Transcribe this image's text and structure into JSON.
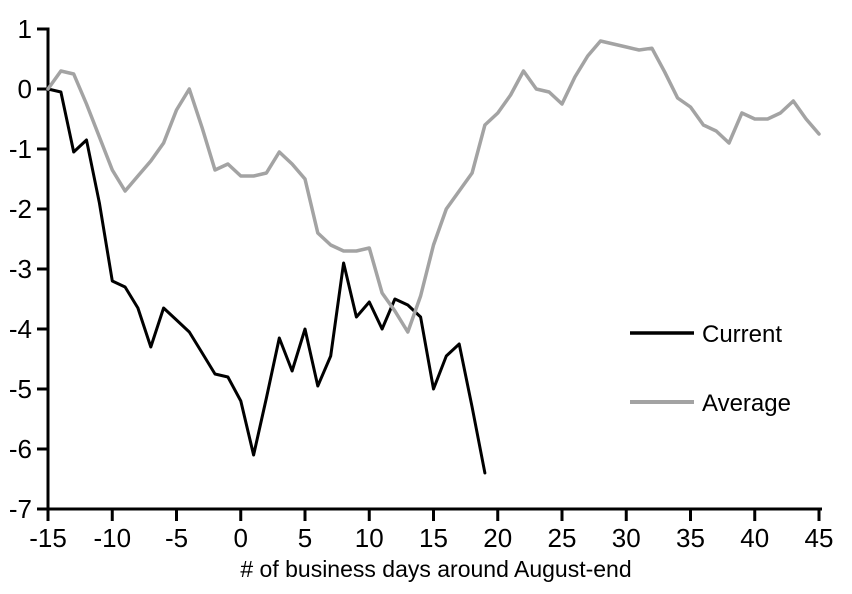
{
  "chart_data": {
    "type": "line",
    "title": "",
    "xlabel": "# of business days around August-end",
    "ylabel": "",
    "xlim": [
      -15,
      45
    ],
    "ylim": [
      -7,
      1
    ],
    "grid": false,
    "background_color": "#ffffff",
    "axis_color": "#000000",
    "legend_position": "middle-right",
    "x_ticks": [
      -15,
      -10,
      -5,
      0,
      5,
      10,
      15,
      20,
      25,
      30,
      35,
      40,
      45
    ],
    "y_ticks": [
      1,
      0,
      -1,
      -2,
      -3,
      -4,
      -5,
      -6,
      -7
    ],
    "series": [
      {
        "name": "Current",
        "color": "#000000",
        "x": [
          -15,
          -14,
          -13,
          -12,
          -11,
          -10,
          -9,
          -8,
          -7,
          -6,
          -5,
          -4,
          -3,
          -2,
          -1,
          0,
          1,
          2,
          3,
          4,
          5,
          6,
          7,
          8,
          9,
          10,
          11,
          12,
          13,
          14,
          15,
          16,
          17,
          18,
          19
        ],
        "values": [
          0,
          -0.05,
          -1.05,
          -0.85,
          -1.9,
          -3.2,
          -3.3,
          -3.65,
          -4.3,
          -3.65,
          -3.85,
          -4.05,
          -4.4,
          -4.75,
          -4.8,
          -5.2,
          -6.1,
          -5.15,
          -4.15,
          -4.7,
          -4.0,
          -4.95,
          -4.45,
          -2.9,
          -3.8,
          -3.55,
          -4.0,
          -3.5,
          -3.6,
          -3.8,
          -5.0,
          -4.45,
          -4.25,
          -5.3,
          -6.4
        ]
      },
      {
        "name": "Average",
        "color": "#a3a3a3",
        "x": [
          -15,
          -14,
          -13,
          -12,
          -11,
          -10,
          -9,
          -8,
          -7,
          -6,
          -5,
          -4,
          -3,
          -2,
          -1,
          0,
          1,
          2,
          3,
          4,
          5,
          6,
          7,
          8,
          9,
          10,
          11,
          12,
          13,
          14,
          15,
          16,
          17,
          18,
          19,
          20,
          21,
          22,
          23,
          24,
          25,
          26,
          27,
          28,
          29,
          30,
          31,
          32,
          33,
          34,
          35,
          36,
          37,
          38,
          39,
          40,
          41,
          42,
          43,
          44,
          45
        ],
        "values": [
          0,
          0.3,
          0.25,
          -0.25,
          -0.8,
          -1.35,
          -1.7,
          -1.45,
          -1.2,
          -0.9,
          -0.35,
          0.0,
          -0.65,
          -1.35,
          -1.25,
          -1.45,
          -1.45,
          -1.4,
          -1.05,
          -1.25,
          -1.5,
          -2.4,
          -2.6,
          -2.7,
          -2.7,
          -2.65,
          -3.4,
          -3.7,
          -4.05,
          -3.45,
          -2.6,
          -2.0,
          -1.7,
          -1.4,
          -0.6,
          -0.4,
          -0.1,
          0.3,
          0.0,
          -0.05,
          -0.25,
          0.2,
          0.55,
          0.8,
          0.75,
          0.7,
          0.65,
          0.68,
          0.28,
          -0.15,
          -0.3,
          -0.6,
          -0.7,
          -0.9,
          -0.4,
          -0.5,
          -0.5,
          -0.4,
          -0.2,
          -0.5,
          -0.75
        ]
      }
    ]
  }
}
